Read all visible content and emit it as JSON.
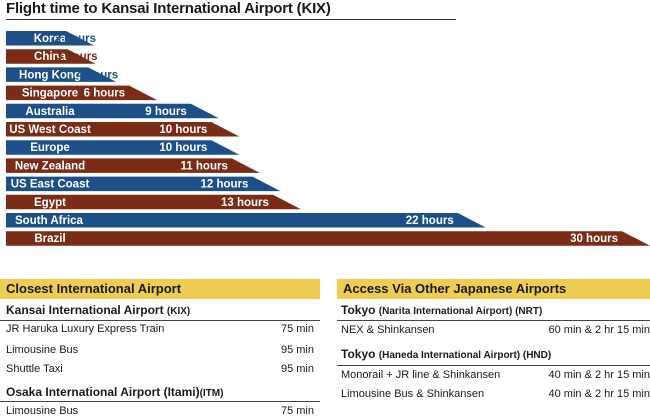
{
  "title": "Flight time to Kansai International Airport (KIX)",
  "colors": {
    "blue": "#1d4f88",
    "brown": "#7a2c17",
    "gold": "#efcc52"
  },
  "chart_data": {
    "type": "bar",
    "orientation": "horizontal",
    "title": "Flight time to Kansai International Airport (KIX)",
    "unit": "hours",
    "categories": [
      "Korea",
      "China",
      "Hong Kong",
      "Singapore",
      "Australia",
      "US West Coast",
      "Europe",
      "New Zealand",
      "US East Coast",
      "Egypt",
      "South Africa",
      "Brazil"
    ],
    "values": [
      2,
      3,
      4,
      6,
      9,
      10,
      10,
      11,
      12,
      13,
      22,
      30
    ],
    "value_labels": [
      "2 hours",
      "3 hours",
      "4 hours",
      "6 hours",
      "9 hours",
      "10 hours",
      "10 hours",
      "11 hours",
      "12 hours",
      "13 hours",
      "22 hours",
      "30 hours"
    ],
    "bar_colors": [
      "#1d4f88",
      "#7a2c17",
      "#1d4f88",
      "#7a2c17",
      "#1d4f88",
      "#7a2c17",
      "#1d4f88",
      "#7a2c17",
      "#1d4f88",
      "#7a2c17",
      "#1d4f88",
      "#7a2c17"
    ],
    "xlim": [
      0,
      30
    ]
  },
  "closest": {
    "heading": "Closest International Airport",
    "kix": {
      "name": "Kansai International Airport",
      "code": "(KIX)",
      "rows": [
        {
          "label": "JR Haruka Luxury Express Train",
          "value": "75 min"
        },
        {
          "label": "Limousine Bus",
          "value": "95 min"
        },
        {
          "label": "Shuttle Taxi",
          "value": "95 min"
        }
      ]
    },
    "itm": {
      "name": "Osaka International Airport (Itami)",
      "code": "(ITM)",
      "rows": [
        {
          "label": "Limousine Bus",
          "value": "75 min"
        }
      ]
    }
  },
  "other": {
    "heading": "Access Via Other Japanese Airports",
    "nrt": {
      "city": "Tokyo",
      "name": "(Narita International Airport) (NRT)",
      "rows": [
        {
          "label": "NEX & Shinkansen",
          "value": "60 min & 2 hr 15 min"
        }
      ]
    },
    "hnd": {
      "city": "Tokyo",
      "name": "(Haneda International Airport) (HND)",
      "rows": [
        {
          "label": "Monorail + JR line & Shinkansen",
          "value": "40 min & 2 hr 15 min"
        },
        {
          "label": "Limousine Bus & Shinkansen",
          "value": "40 min & 2 hr 15 min"
        }
      ]
    }
  }
}
